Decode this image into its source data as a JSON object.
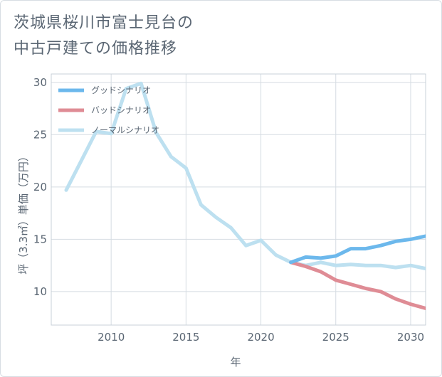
{
  "title_lines": [
    "茨城県桜川市富士見台の",
    "中古戸建ての価格推移"
  ],
  "chart_data": {
    "type": "line",
    "title": "茨城県桜川市富士見台の中古戸建ての価格推移",
    "xlabel": "年",
    "ylabel": "坪（3.3㎡）単価（万円）",
    "xlim": [
      2006,
      2031
    ],
    "ylim": [
      6.8,
      30.8
    ],
    "xticks": [
      2010,
      2015,
      2020,
      2025,
      2030
    ],
    "yticks": [
      10,
      15,
      20,
      25,
      30
    ],
    "grid": true,
    "legend_position": "top-left",
    "series": [
      {
        "name": "グッドシナリオ",
        "color": "#6cb8ec",
        "x": [
          2022,
          2023,
          2024,
          2025,
          2026,
          2027,
          2028,
          2029,
          2030,
          2031
        ],
        "y": [
          12.8,
          13.3,
          13.2,
          13.4,
          14.1,
          14.1,
          14.4,
          14.8,
          15.0,
          15.3
        ]
      },
      {
        "name": "バッドシナリオ",
        "color": "#df8c95",
        "x": [
          2022,
          2023,
          2024,
          2025,
          2026,
          2027,
          2028,
          2029,
          2030,
          2031
        ],
        "y": [
          12.8,
          12.4,
          11.9,
          11.1,
          10.7,
          10.3,
          10.0,
          9.3,
          8.8,
          8.4
        ]
      },
      {
        "name": "ノーマルシナリオ",
        "color": "#bde0f0",
        "x": [
          2007,
          2008,
          2009,
          2010,
          2011,
          2012,
          2013,
          2014,
          2015,
          2016,
          2017,
          2018,
          2019,
          2020,
          2021,
          2022,
          2023,
          2024,
          2025,
          2026,
          2027,
          2028,
          2029,
          2030,
          2031
        ],
        "y": [
          19.7,
          22.5,
          25.3,
          25.1,
          29.4,
          29.9,
          25.2,
          22.9,
          21.8,
          18.3,
          17.1,
          16.1,
          14.4,
          14.9,
          13.5,
          12.8,
          12.5,
          12.8,
          12.5,
          12.6,
          12.5,
          12.5,
          12.3,
          12.5,
          12.2
        ]
      }
    ]
  }
}
